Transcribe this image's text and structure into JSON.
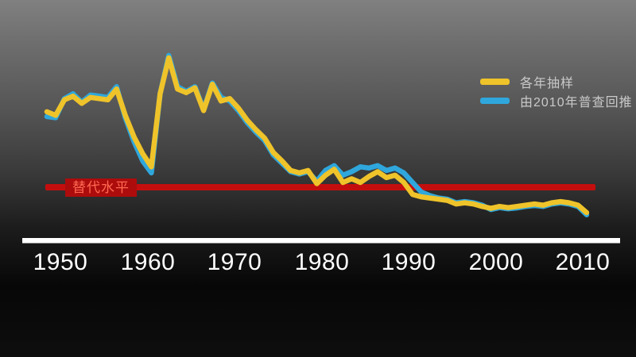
{
  "legend": {
    "items": [
      {
        "label": "各年抽样",
        "color": "#EFC32A"
      },
      {
        "label": "由2010年普查回推",
        "color": "#2FA7DC"
      }
    ]
  },
  "replacement": {
    "label": "替代水平",
    "value": 2.1,
    "line_color": "#C40E0E",
    "box_color": "#AD0C0C",
    "text_color": "#FF6A52"
  },
  "axis": {
    "ticks": [
      "1950",
      "1960",
      "1970",
      "1980",
      "1990",
      "2000",
      "2010"
    ],
    "line_color": "#FFFFFF"
  },
  "chart_data": {
    "type": "line",
    "title": "",
    "xlabel": "",
    "ylabel": "",
    "x_range": [
      1949,
      2011
    ],
    "y_range": [
      0.9,
      7.8
    ],
    "x_ticks": [
      1950,
      1960,
      1970,
      1980,
      1990,
      2000,
      2010
    ],
    "grid": false,
    "legend_position": "top-right",
    "replacement_level": {
      "label": "替代水平",
      "y": 2.1
    },
    "x": [
      1949,
      1950,
      1951,
      1952,
      1953,
      1954,
      1955,
      1956,
      1957,
      1958,
      1959,
      1960,
      1961,
      1962,
      1963,
      1964,
      1965,
      1966,
      1967,
      1968,
      1969,
      1970,
      1971,
      1972,
      1973,
      1974,
      1975,
      1976,
      1977,
      1978,
      1979,
      1980,
      1981,
      1982,
      1983,
      1984,
      1985,
      1986,
      1987,
      1988,
      1989,
      1990,
      1991,
      1992,
      1993,
      1994,
      1995,
      1996,
      1997,
      1998,
      1999,
      2000,
      2001,
      2002,
      2003,
      2004,
      2005,
      2006,
      2007,
      2008,
      2009,
      2010,
      2011
    ],
    "series": [
      {
        "name": "各年抽样",
        "color": "#EFC32A",
        "values": [
          5.25,
          5.1,
          5.75,
          5.9,
          5.6,
          5.85,
          5.8,
          5.75,
          6.2,
          5.1,
          4.2,
          3.5,
          2.95,
          6.0,
          7.5,
          6.2,
          6.05,
          6.25,
          5.3,
          6.4,
          5.7,
          5.8,
          5.4,
          4.9,
          4.5,
          4.15,
          3.55,
          3.2,
          2.8,
          2.7,
          2.8,
          2.25,
          2.6,
          2.85,
          2.3,
          2.45,
          2.3,
          2.55,
          2.75,
          2.5,
          2.6,
          2.3,
          1.8,
          1.7,
          1.65,
          1.6,
          1.55,
          1.4,
          1.45,
          1.4,
          1.3,
          1.22,
          1.3,
          1.25,
          1.3,
          1.35,
          1.4,
          1.35,
          1.45,
          1.5,
          1.45,
          1.35,
          1.04
        ]
      },
      {
        "name": "由2010年普查回推",
        "color": "#2FA7DC",
        "values": [
          5.05,
          5.0,
          5.8,
          6.0,
          5.65,
          5.95,
          5.9,
          5.85,
          6.3,
          5.0,
          4.0,
          3.2,
          2.7,
          6.0,
          7.6,
          6.3,
          6.1,
          6.3,
          5.35,
          6.45,
          5.85,
          5.7,
          5.3,
          4.8,
          4.4,
          4.05,
          3.45,
          3.1,
          2.75,
          2.65,
          2.75,
          2.35,
          2.8,
          3.0,
          2.6,
          2.75,
          2.95,
          2.9,
          3.0,
          2.8,
          2.9,
          2.7,
          2.3,
          1.9,
          1.75,
          1.65,
          1.6,
          1.45,
          1.5,
          1.45,
          1.35,
          1.17,
          1.25,
          1.2,
          1.24,
          1.3,
          1.34,
          1.3,
          1.4,
          1.45,
          1.4,
          1.3,
          0.95
        ]
      }
    ]
  }
}
